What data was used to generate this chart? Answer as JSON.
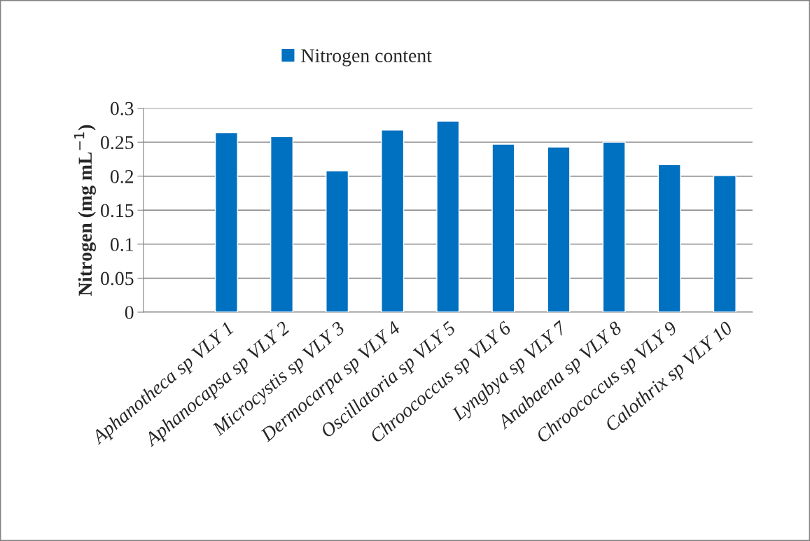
{
  "chart_data": {
    "type": "bar",
    "ylabel": "Nitrogen (mg mL$^{−1}$)",
    "categories": [
      null,
      "Aphanotheca sp VLY 1",
      "Aphanocapsa sp VLY 2",
      "Microcystis sp VLY 3",
      "Dermocarpa sp VLY 4",
      "Oscillatoria sp VLY 5",
      "Chroococcus sp VLY 6",
      "Lyngbya sp VLY 7",
      "Anabaena sp VLY 8",
      "Chroococcus sp VLY 9",
      "Calothrix sp VLY 10"
    ],
    "series": [
      {
        "name": "Nitrogen content",
        "color": "#0070c0",
        "values": [
          null,
          0.264,
          0.258,
          0.208,
          0.268,
          0.281,
          0.247,
          0.243,
          0.25,
          0.217,
          0.201
        ]
      }
    ],
    "ylim": [
      0,
      0.3
    ],
    "yticks": [
      0,
      0.05,
      0.1,
      0.15,
      0.2,
      0.25,
      0.3
    ],
    "grid": "y",
    "legend": "top"
  }
}
